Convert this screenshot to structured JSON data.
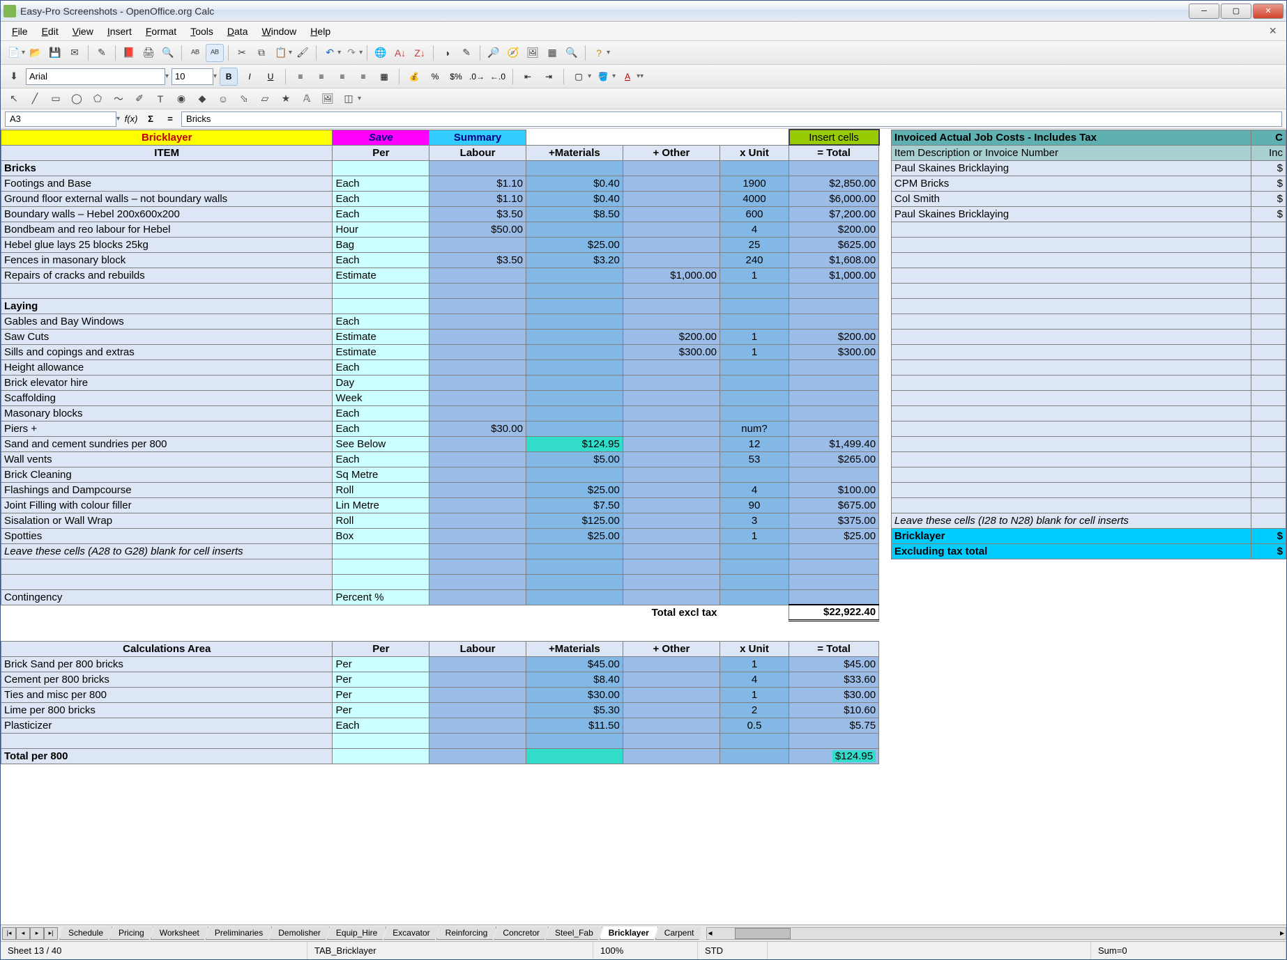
{
  "window": {
    "title": "Easy-Pro Screenshots - OpenOffice.org Calc"
  },
  "menu": [
    "File",
    "Edit",
    "View",
    "Insert",
    "Format",
    "Tools",
    "Data",
    "Window",
    "Help"
  ],
  "format": {
    "font": "Arial",
    "size": "10"
  },
  "formula": {
    "cell": "A3",
    "value": "Bricks"
  },
  "header": {
    "bricklayer": "Bricklayer",
    "save": "Save",
    "summary": "Summary",
    "insert": "Insert cells",
    "item": "ITEM",
    "per": "Per",
    "labour": "Labour",
    "materials": "+Materials",
    "other": "+ Other",
    "unit": "x Unit",
    "total": "= Total",
    "invoiced": "Invoiced Actual Job Costs - Includes Tax",
    "invoice_desc": "Item Description or Invoice Number",
    "inc": "Inc",
    "c": "C"
  },
  "rows": [
    {
      "item": "Bricks",
      "bold": true
    },
    {
      "item": "Footings and Base",
      "per": "Each",
      "labour": "$1.10",
      "mat": "$0.40",
      "other": "",
      "unit": "1900",
      "total": "$2,850.00"
    },
    {
      "item": "Ground floor external walls – not boundary walls",
      "per": "Each",
      "labour": "$1.10",
      "mat": "$0.40",
      "other": "",
      "unit": "4000",
      "total": "$6,000.00"
    },
    {
      "item": "Boundary walls  – Hebel 200x600x200",
      "per": "Each",
      "labour": "$3.50",
      "mat": "$8.50",
      "other": "",
      "unit": "600",
      "total": "$7,200.00"
    },
    {
      "item": "Bondbeam and reo labour for Hebel",
      "per": "Hour",
      "labour": "$50.00",
      "mat": "",
      "other": "",
      "unit": "4",
      "total": "$200.00"
    },
    {
      "item": "Hebel glue  lays 25 blocks 25kg",
      "per": "Bag",
      "labour": "",
      "mat": "$25.00",
      "other": "",
      "unit": "25",
      "total": "$625.00"
    },
    {
      "item": "Fences in masonary block",
      "per": "Each",
      "labour": "$3.50",
      "mat": "$3.20",
      "other": "",
      "unit": "240",
      "total": "$1,608.00"
    },
    {
      "item": "Repairs of cracks and rebuilds",
      "per": "Estimate",
      "labour": "",
      "mat": "",
      "other": "$1,000.00",
      "unit": "1",
      "total": "$1,000.00"
    },
    {
      "blank": true
    },
    {
      "item": "Laying",
      "bold": true
    },
    {
      "item": "Gables and Bay Windows",
      "per": "Each"
    },
    {
      "item": "Saw Cuts",
      "per": "Estimate",
      "other": "$200.00",
      "unit": "1",
      "total": "$200.00"
    },
    {
      "item": "Sills and copings and extras",
      "per": "Estimate",
      "other": "$300.00",
      "unit": "1",
      "total": "$300.00"
    },
    {
      "item": "Height allowance",
      "per": "Each"
    },
    {
      "item": "Brick elevator hire",
      "per": "Day"
    },
    {
      "item": "Scaffolding",
      "per": "Week"
    },
    {
      "item": "Masonary blocks",
      "per": "Each"
    },
    {
      "item": "Piers +",
      "per": "Each",
      "labour": "$30.00",
      "unit": "num?"
    },
    {
      "item": "Sand and cement sundries per 800",
      "per": "See Below",
      "mat": "$124.95",
      "mathl": true,
      "unit": "12",
      "total": "$1,499.40"
    },
    {
      "item": "Wall vents",
      "per": "Each",
      "mat": "$5.00",
      "unit": "53",
      "total": "$265.00"
    },
    {
      "item": "Brick Cleaning",
      "per": "Sq Metre"
    },
    {
      "item": "Flashings and Dampcourse",
      "per": "Roll",
      "mat": "$25.00",
      "unit": "4",
      "total": "$100.00"
    },
    {
      "item": "Joint Filling with colour filler",
      "per": "Lin Metre",
      "mat": "$7.50",
      "unit": "90",
      "total": "$675.00"
    },
    {
      "item": "Sisalation or Wall Wrap",
      "per": "Roll",
      "mat": "$125.00",
      "unit": "3",
      "total": "$375.00"
    },
    {
      "item": "Spotties",
      "per": "Box",
      "mat": "$25.00",
      "unit": "1",
      "total": "$25.00"
    },
    {
      "item": "Leave these cells (A28 to G28) blank for cell inserts",
      "italic": true
    },
    {
      "blank": true
    },
    {
      "blank": true
    },
    {
      "item": "Contingency",
      "per": "Percent %"
    }
  ],
  "total_row": {
    "label": "Total excl tax",
    "value": "$22,922.40"
  },
  "calc_header": {
    "title": "Calculations Area",
    "per": "Per",
    "labour": "Labour",
    "materials": "+Materials",
    "other": "+ Other",
    "unit": "x Unit",
    "total": "= Total"
  },
  "calc_rows": [
    {
      "item": "Brick Sand per 800 bricks",
      "per": "Per",
      "mat": "$45.00",
      "unit": "1",
      "total": "$45.00"
    },
    {
      "item": "Cement per 800 bricks",
      "per": "Per",
      "mat": "$8.40",
      "unit": "4",
      "total": "$33.60"
    },
    {
      "item": "Ties and misc per 800",
      "per": "Per",
      "mat": "$30.00",
      "unit": "1",
      "total": "$30.00"
    },
    {
      "item": "Lime per 800 bricks",
      "per": "Per",
      "mat": "$5.30",
      "unit": "2",
      "total": "$10.60"
    },
    {
      "item": "Plasticizer",
      "per": "Each",
      "mat": "$11.50",
      "unit": "0.5",
      "total": "$5.75"
    }
  ],
  "calc_total": {
    "item": "Total per 800",
    "total": "$124.95"
  },
  "invoices": [
    "Paul Skaines Bricklaying",
    "CPM Bricks",
    "Col Smith",
    "Paul Skaines Bricklaying"
  ],
  "invoice_footer": {
    "leave": "Leave these cells (I28 to N28) blank for cell inserts",
    "bricklayer": "Bricklayer",
    "excl": "Excluding tax total"
  },
  "tabs": [
    "Schedule",
    "Pricing",
    "Worksheet",
    "Preliminaries",
    "Demolisher",
    "Equip_Hire",
    "Excavator",
    "Reinforcing",
    "Concretor",
    "Steel_Fab",
    "Bricklayer",
    "Carpent"
  ],
  "status": {
    "sheet": "Sheet 13 / 40",
    "tab": "TAB_Bricklayer",
    "zoom": "100%",
    "mode": "STD",
    "sum": "Sum=0"
  }
}
